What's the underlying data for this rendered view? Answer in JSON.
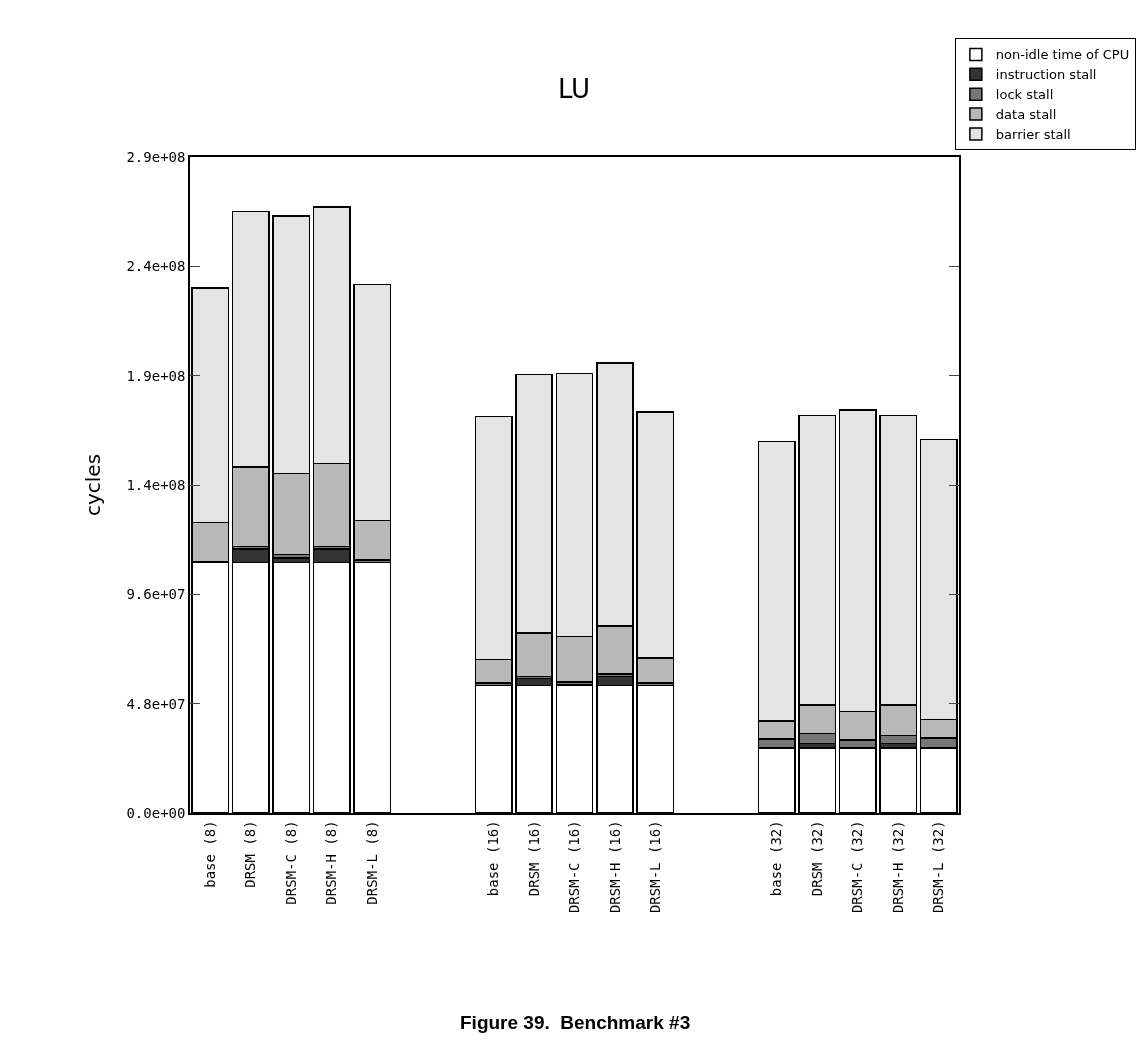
{
  "chart_data": {
    "type": "bar",
    "stacked": true,
    "title": "LU",
    "ylabel": "cycles",
    "categories": [
      "base (8)",
      "DRSM (8)",
      "DRSM-C (8)",
      "DRSM-H (8)",
      "DRSM-L (8)",
      null,
      null,
      "base (16)",
      "DRSM (16)",
      "DRSM-C (16)",
      "DRSM-H (16)",
      "DRSM-L (16)",
      null,
      null,
      "base (32)",
      "DRSM (32)",
      "DRSM-C (32)",
      "DRSM-H (32)",
      "DRSM-L (32)"
    ],
    "series": [
      {
        "name": "non-idle time of CPU",
        "color": "#ffffff",
        "values": [
          110000000,
          110000000,
          110000000,
          110000000,
          110000000,
          null,
          null,
          56000000,
          56000000,
          56000000,
          56000000,
          56000000,
          null,
          null,
          28500000,
          28500000,
          28500000,
          28500000,
          28500000
        ]
      },
      {
        "name": "instruction stall",
        "color": "#333333",
        "values": [
          0,
          6000000,
          2000000,
          6000000,
          0,
          null,
          null,
          0,
          3000000,
          500000,
          4000000,
          0,
          null,
          null,
          0,
          2000000,
          0,
          2000000,
          0
        ]
      },
      {
        "name": "lock stall",
        "color": "#777777",
        "values": [
          500000,
          1000000,
          1500000,
          1000000,
          1000000,
          null,
          null,
          1000000,
          1000000,
          1000000,
          1000000,
          1000000,
          null,
          null,
          4000000,
          4500000,
          3500000,
          3500000,
          4500000
        ]
      },
      {
        "name": "data stall",
        "color": "#b8b8b8",
        "values": [
          17000000,
          35000000,
          35500000,
          36500000,
          17500000,
          null,
          null,
          10500000,
          19000000,
          20000000,
          21000000,
          11000000,
          null,
          null,
          8000000,
          12500000,
          12500000,
          13500000,
          8000000
        ]
      },
      {
        "name": "barrier stall",
        "color": "#e4e4e4",
        "values": [
          103000000,
          112000000,
          113000000,
          112500000,
          103500000,
          null,
          null,
          106500000,
          113500000,
          115500000,
          115500000,
          108000000,
          null,
          null,
          122500000,
          127000000,
          132500000,
          127000000,
          123000000
        ]
      }
    ],
    "ylim": [
      0,
      288000000
    ],
    "yticks": [
      {
        "value": 0,
        "label": "0.0e+00"
      },
      {
        "value": 48000000,
        "label": "4.8e+07"
      },
      {
        "value": 96000000,
        "label": "9.6e+07"
      },
      {
        "value": 144000000,
        "label": "1.4e+08"
      },
      {
        "value": 192000000,
        "label": "1.9e+08"
      },
      {
        "value": 240000000,
        "label": "2.4e+08"
      },
      {
        "value": 288000000,
        "label": "2.9e+08"
      }
    ],
    "grid": false,
    "legend": "top right",
    "annotations": [
      "Figure 39.  Benchmark #3"
    ]
  }
}
